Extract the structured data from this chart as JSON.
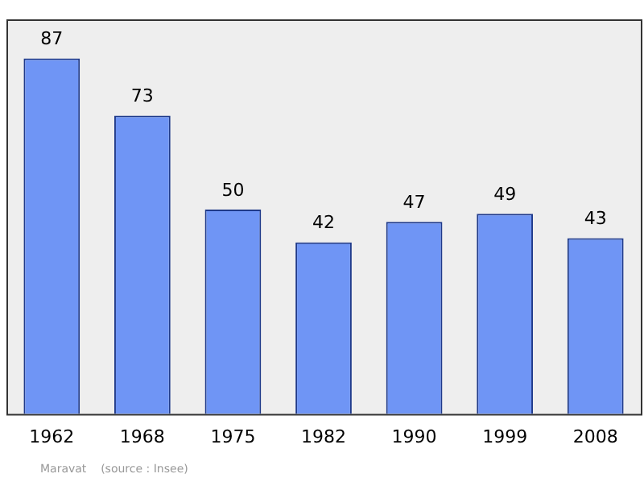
{
  "chart_data": {
    "type": "bar",
    "categories": [
      "1962",
      "1968",
      "1975",
      "1982",
      "1990",
      "1999",
      "2008"
    ],
    "values": [
      87,
      73,
      50,
      42,
      47,
      49,
      43
    ],
    "color": "#6f95f5",
    "data_labels": true,
    "grid": false,
    "legend": false,
    "annotations": [
      "Maravat    (source : Insee)"
    ]
  }
}
